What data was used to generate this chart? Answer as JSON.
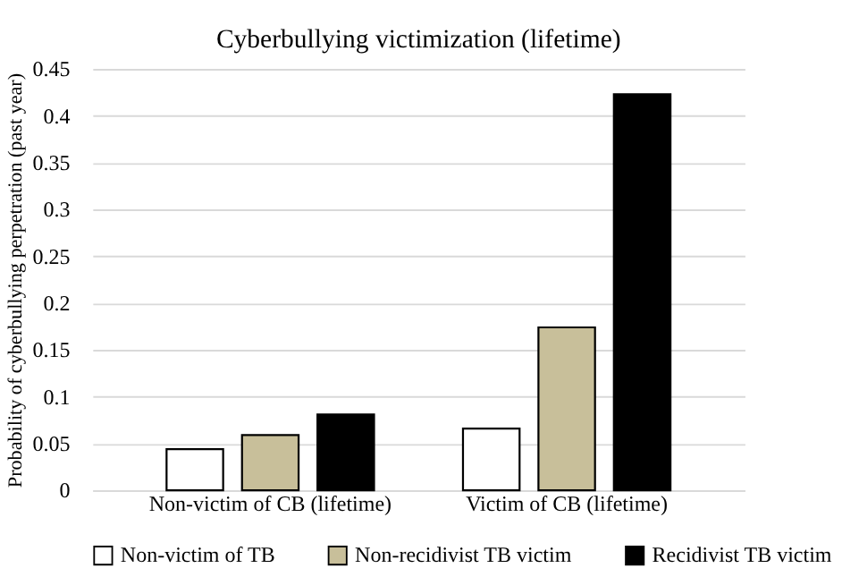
{
  "chart_data": {
    "type": "bar",
    "title": "Cyberbullying victimization (lifetime)",
    "ylabel": "Probability of cyberbullying perpetration (past year)",
    "categories": [
      "Non-victim of CB (lifetime)",
      "Victim of CB (lifetime)"
    ],
    "series": [
      {
        "name": "Non-victim of TB",
        "color": "#ffffff",
        "values": [
          0.044,
          0.066
        ]
      },
      {
        "name": "Non-recidivist TB victim",
        "color": "#c8bf9a",
        "values": [
          0.059,
          0.174
        ]
      },
      {
        "name": "Recidivist TB victim",
        "color": "#000000",
        "values": [
          0.081,
          0.423
        ]
      }
    ],
    "ylim": [
      0,
      0.45
    ],
    "yticks": [
      0,
      0.05,
      0.1,
      0.15,
      0.2,
      0.25,
      0.3,
      0.35,
      0.4,
      0.45
    ],
    "grid": "y",
    "legend": "bottom"
  }
}
